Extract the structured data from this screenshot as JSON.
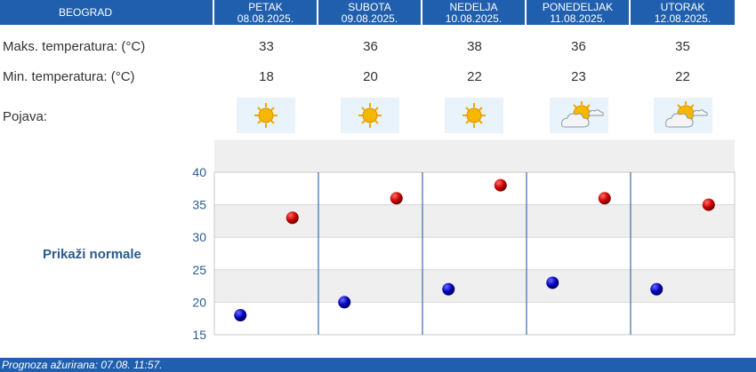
{
  "header": {
    "city": "BEOGRAD",
    "days": [
      {
        "name": "PETAK",
        "date": "08.08.2025."
      },
      {
        "name": "SUBOTA",
        "date": "09.08.2025."
      },
      {
        "name": "NEDELJA",
        "date": "10.08.2025."
      },
      {
        "name": "PONEDELJAK",
        "date": "11.08.2025."
      },
      {
        "name": "UTORAK",
        "date": "12.08.2025."
      }
    ]
  },
  "rows": {
    "max_label": "Maks. temperatura: (°C)",
    "min_label": "Min. temperatura: (°C)",
    "phenomenon_label": "Pojava:"
  },
  "max_temps": [
    "33",
    "36",
    "38",
    "36",
    "35"
  ],
  "min_temps": [
    "18",
    "20",
    "22",
    "23",
    "22"
  ],
  "phenomena_icons": [
    "sun-icon",
    "sun-icon",
    "sun-icon",
    "partly-cloudy-icon",
    "partly-cloudy-icon"
  ],
  "show_normals_label": "Prikaži normale",
  "footer": {
    "updated": "Prognoza ažurirana:  07.08. 11:57."
  },
  "colors": {
    "header_bg": "#1f5fae",
    "max_dot": "#cc0000",
    "min_dot": "#0000aa"
  },
  "chart_data": {
    "type": "scatter",
    "categories": [
      "PETAK",
      "SUBOTA",
      "NEDELJA",
      "PONEDELJAK",
      "UTORAK"
    ],
    "series": [
      {
        "values": [
          33,
          36,
          38,
          36,
          35
        ]
      },
      {
        "values": [
          18,
          20,
          22,
          23,
          22
        ]
      }
    ],
    "ylim": [
      15,
      40
    ],
    "yticks": [
      "15",
      "20",
      "25",
      "30",
      "35",
      "40"
    ],
    "grid": true
  }
}
